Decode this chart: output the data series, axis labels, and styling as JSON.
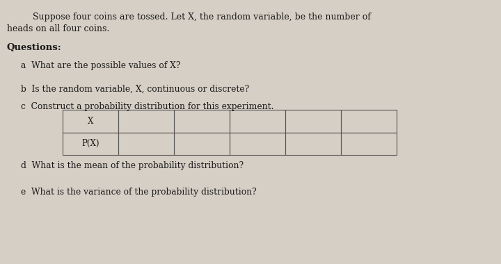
{
  "bg_color": "#d6cfc5",
  "page_color": "#e8e4de",
  "text_color": "#1a1a1a",
  "intro_line1": "Suppose four coins are tossed. Let X, the random variable, be the number of",
  "intro_line2": "heads on all four coins.",
  "questions_label": "Questions:",
  "qa": "a  What are the possible values of X?",
  "qb": "b  Is the random variable, X, continuous or discrete?",
  "qc": "c  Construct a probability distribution for this experiment.",
  "qd": "d  What is the mean of the probability distribution?",
  "qe": "e  What is the variance of the probability distribution?",
  "table_row1_label": "X",
  "table_row2_label": "P(X)",
  "num_data_cols": 5,
  "font_size_intro": 9.0,
  "font_size_questions": 8.8,
  "font_size_bold": 9.5,
  "font_size_table": 8.5
}
